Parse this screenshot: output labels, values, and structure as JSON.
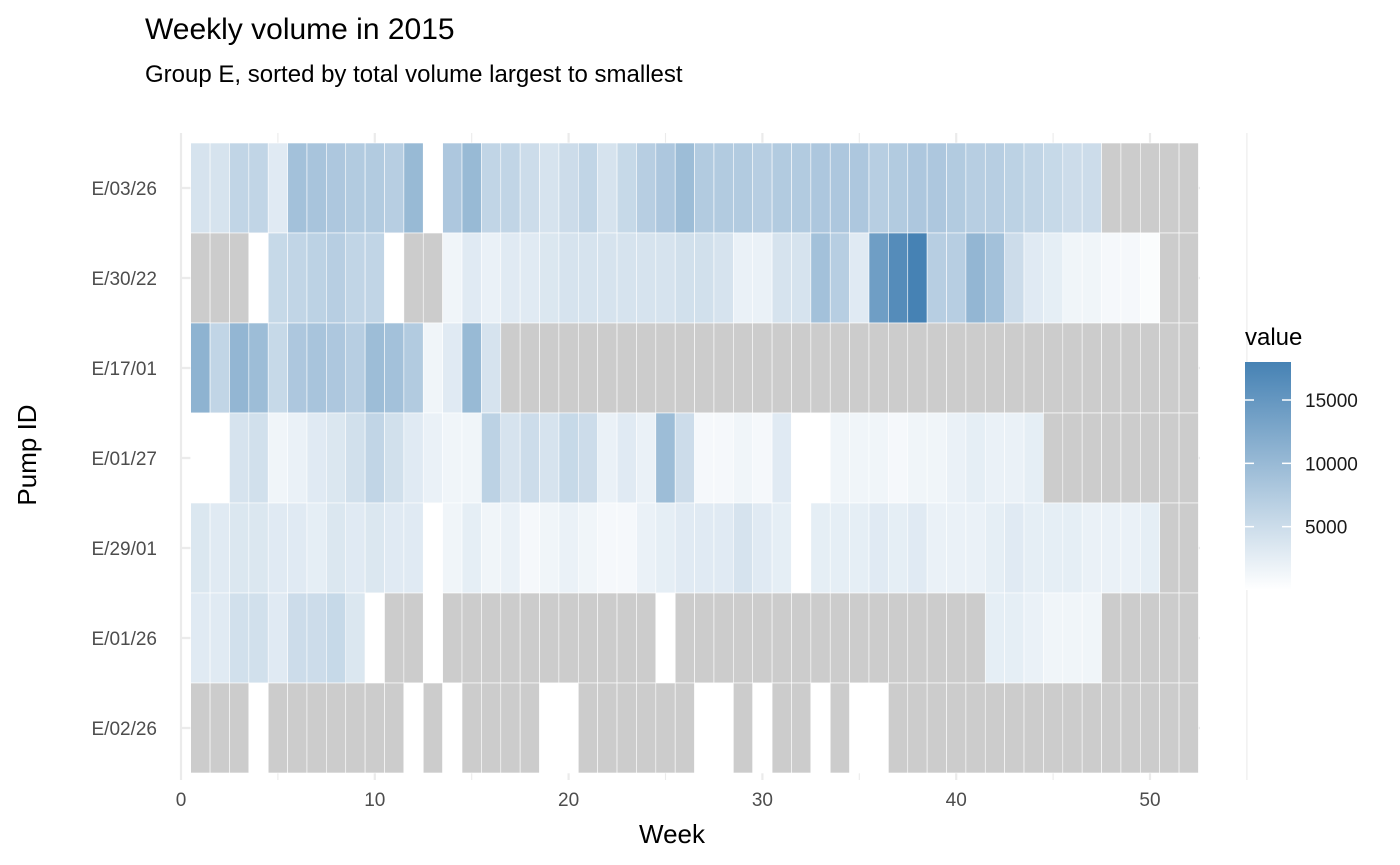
{
  "chart_data": {
    "type": "heatmap",
    "title": "Weekly volume in 2015",
    "subtitle": "Group E, sorted by total volume largest to smallest",
    "xlabel": "Week",
    "ylabel": "Pump ID",
    "xlim": [
      0,
      55
    ],
    "x_ticks": [
      0,
      10,
      20,
      30,
      40,
      50
    ],
    "weeks": [
      1,
      2,
      3,
      4,
      5,
      6,
      7,
      8,
      9,
      10,
      11,
      12,
      13,
      14,
      15,
      16,
      17,
      18,
      19,
      20,
      21,
      22,
      23,
      24,
      25,
      26,
      27,
      28,
      29,
      30,
      31,
      32,
      33,
      34,
      35,
      36,
      37,
      38,
      39,
      40,
      41,
      42,
      43,
      44,
      45,
      46,
      47,
      48,
      49,
      50,
      51,
      52
    ],
    "grid": true,
    "na_color": "#cccccc",
    "color_scale": {
      "low": "#ffffff",
      "high": "#4682b4",
      "min": 0,
      "max": 18000
    },
    "legend": {
      "title": "value",
      "position": "right",
      "ticks": [
        5000,
        10000,
        15000
      ]
    },
    "series": [
      {
        "name": "E/03/26",
        "values": [
          4000,
          4000,
          6000,
          6000,
          3000,
          9000,
          8500,
          8000,
          7500,
          7500,
          7000,
          10000,
          0,
          8000,
          10000,
          6000,
          6000,
          5000,
          4000,
          5000,
          6000,
          4000,
          5500,
          7000,
          8000,
          9500,
          7500,
          7500,
          7500,
          7000,
          7500,
          7500,
          8000,
          8000,
          8000,
          7000,
          7500,
          8000,
          8000,
          7500,
          7000,
          7000,
          6500,
          6000,
          5500,
          5000,
          5000,
          null,
          null,
          null,
          null,
          null
        ]
      },
      {
        "name": "E/30/22",
        "values": [
          null,
          null,
          null,
          0,
          5500,
          6000,
          6500,
          7000,
          6000,
          6000,
          0,
          null,
          null,
          1500,
          3000,
          2000,
          3000,
          3000,
          3500,
          4000,
          4000,
          4000,
          4000,
          4000,
          4000,
          4500,
          4500,
          4000,
          2000,
          2000,
          4000,
          4000,
          9000,
          7000,
          3000,
          14000,
          16500,
          18000,
          7000,
          7000,
          10500,
          9000,
          5000,
          3000,
          2500,
          1500,
          1500,
          1000,
          1000,
          500,
          null,
          null
        ]
      },
      {
        "name": "E/17/01",
        "values": [
          11000,
          6000,
          10500,
          9500,
          5500,
          8000,
          8500,
          8000,
          7000,
          9500,
          9000,
          7500,
          1500,
          3000,
          10000,
          4000,
          null,
          null,
          null,
          null,
          null,
          null,
          null,
          null,
          null,
          null,
          null,
          null,
          null,
          null,
          null,
          null,
          null,
          null,
          null,
          null,
          null,
          null,
          null,
          null,
          null,
          null,
          null,
          null,
          null,
          null,
          null,
          null,
          null,
          null,
          null,
          null
        ]
      },
      {
        "name": "E/01/27",
        "values": [
          0,
          0,
          4000,
          4500,
          1500,
          2000,
          3000,
          3500,
          4500,
          6000,
          4500,
          3000,
          2000,
          1500,
          1500,
          6500,
          4000,
          5000,
          4000,
          5500,
          5000,
          2000,
          3000,
          2000,
          9500,
          5000,
          1000,
          1000,
          1500,
          1000,
          3000,
          0,
          0,
          1500,
          1500,
          1500,
          1000,
          1500,
          1500,
          2000,
          2500,
          2000,
          2000,
          2500,
          null,
          null,
          null,
          null,
          null,
          null,
          null,
          null
        ]
      },
      {
        "name": "E/29/01",
        "values": [
          3500,
          3000,
          3500,
          3500,
          3000,
          3000,
          2500,
          3500,
          3000,
          3500,
          3000,
          3000,
          0,
          1500,
          2500,
          1500,
          2000,
          1000,
          1500,
          2000,
          1500,
          1000,
          1000,
          2000,
          2500,
          3000,
          3000,
          3000,
          4000,
          3000,
          2500,
          0,
          2500,
          2500,
          2500,
          3000,
          2500,
          3000,
          2000,
          2000,
          2000,
          2500,
          3000,
          2500,
          2500,
          2500,
          2000,
          2000,
          2000,
          2500,
          null,
          null
        ]
      },
      {
        "name": "E/01/26",
        "values": [
          3000,
          3000,
          4500,
          4500,
          3000,
          5000,
          5000,
          5500,
          3500,
          0,
          null,
          null,
          0,
          null,
          null,
          null,
          null,
          null,
          null,
          null,
          null,
          null,
          null,
          null,
          0,
          null,
          null,
          null,
          null,
          null,
          null,
          null,
          null,
          null,
          null,
          null,
          null,
          null,
          null,
          null,
          null,
          2500,
          2500,
          2000,
          1500,
          1500,
          1500,
          null,
          null,
          null,
          null,
          null
        ]
      },
      {
        "name": "E/02/26",
        "values": [
          null,
          null,
          null,
          0,
          null,
          null,
          null,
          null,
          null,
          null,
          null,
          0,
          null,
          0,
          null,
          null,
          null,
          null,
          0,
          0,
          null,
          null,
          null,
          null,
          null,
          null,
          0,
          0,
          null,
          0,
          null,
          null,
          0,
          null,
          0,
          0,
          null,
          null,
          null,
          null,
          null,
          null,
          null,
          null,
          null,
          null,
          null,
          null,
          null,
          null,
          null,
          null
        ]
      }
    ]
  }
}
